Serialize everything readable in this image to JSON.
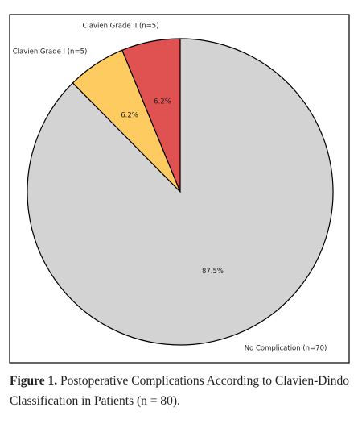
{
  "chart_data": {
    "type": "pie",
    "categories": [
      "Clavien Grade II (n=5)",
      "Clavien Grade I (n=5)",
      "No Complication (n=70)"
    ],
    "values": [
      6.2,
      6.2,
      87.5
    ],
    "value_labels": [
      "6.2%",
      "6.2%",
      "87.5%"
    ],
    "colors": [
      "#e05252",
      "#fdcb5f",
      "#d3d3d3"
    ]
  },
  "caption": {
    "label": "Figure 1.",
    "text": "Postoperative Complications According to Clavien-Dindo Classification in Patients (n = 80)."
  }
}
